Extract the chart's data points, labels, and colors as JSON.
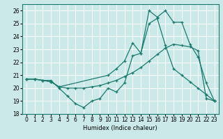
{
  "title": "",
  "xlabel": "Humidex (Indice chaleur)",
  "xlim": [
    -0.5,
    23.5
  ],
  "ylim": [
    18,
    26.5
  ],
  "yticks": [
    18,
    19,
    20,
    21,
    22,
    23,
    24,
    25,
    26
  ],
  "xticks": [
    0,
    1,
    2,
    3,
    4,
    5,
    6,
    7,
    8,
    9,
    10,
    11,
    12,
    13,
    14,
    15,
    16,
    17,
    18,
    19,
    20,
    21,
    22,
    23
  ],
  "bg_color": "#cce9e9",
  "grid_color": "#ffffff",
  "line_color": "#1a7a6e",
  "series": [
    {
      "x": [
        0,
        1,
        2,
        3,
        4,
        5,
        6,
        7,
        8,
        9,
        10,
        11,
        12,
        13,
        14,
        15,
        16,
        17,
        18,
        19,
        20,
        21,
        22,
        23
      ],
      "y": [
        20.7,
        20.7,
        20.6,
        20.6,
        20.0,
        19.4,
        18.8,
        18.5,
        19.0,
        19.2,
        20.0,
        19.7,
        20.4,
        22.5,
        22.7,
        26.0,
        25.5,
        26.0,
        25.1,
        25.1,
        23.4,
        22.4,
        20.4,
        19.0
      ]
    },
    {
      "x": [
        0,
        1,
        2,
        3,
        4,
        5,
        6,
        7,
        8,
        9,
        10,
        11,
        12,
        13,
        14,
        15,
        16,
        17,
        18,
        19,
        20,
        21,
        22,
        23
      ],
      "y": [
        20.7,
        20.7,
        20.6,
        20.5,
        20.1,
        20.0,
        20.0,
        20.0,
        20.1,
        20.2,
        20.4,
        20.6,
        20.9,
        21.2,
        21.6,
        22.1,
        22.6,
        23.1,
        23.4,
        23.3,
        23.2,
        22.9,
        19.2,
        19.0
      ]
    },
    {
      "x": [
        0,
        1,
        2,
        3,
        4,
        10,
        11,
        12,
        13,
        14,
        15,
        16,
        17,
        18,
        19,
        20,
        21,
        22,
        23
      ],
      "y": [
        20.7,
        20.7,
        20.6,
        20.5,
        20.1,
        21.0,
        21.5,
        22.1,
        23.5,
        22.7,
        25.0,
        25.4,
        23.3,
        21.5,
        21.0,
        20.5,
        20.0,
        19.5,
        19.0
      ]
    }
  ]
}
